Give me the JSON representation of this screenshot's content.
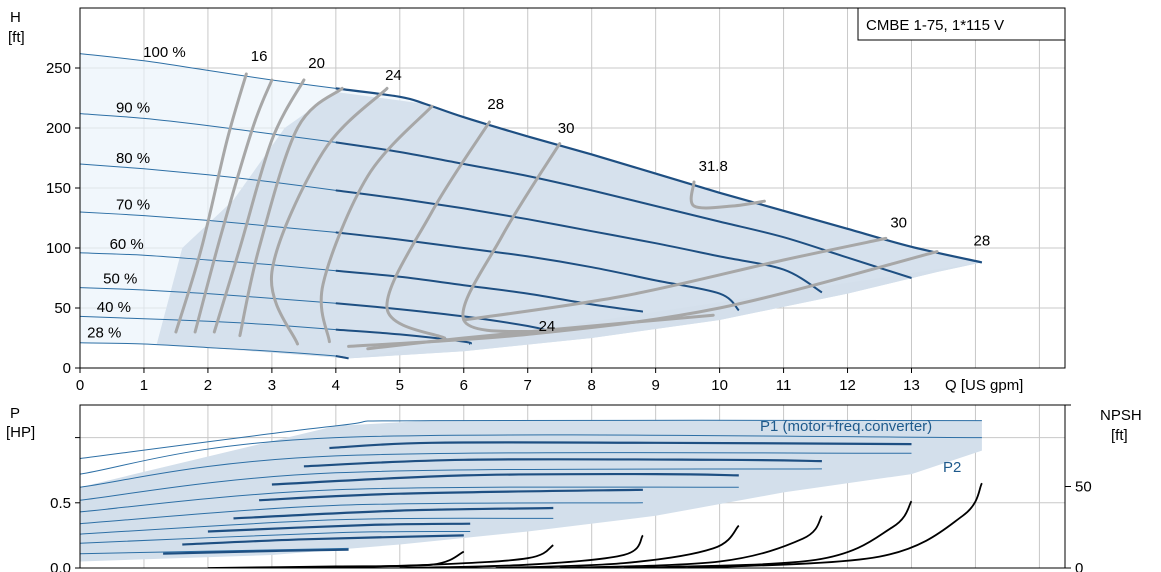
{
  "chart_data": [
    {
      "type": "line",
      "title": "CMBE 1-75, 1*115 V",
      "ylabel_symbol": "H",
      "ylabel_unit": "[ft]",
      "xlabel": "Q [US gpm]",
      "xlim": [
        0,
        15.4
      ],
      "ylim": [
        0,
        300
      ],
      "x_ticks": [
        "0",
        "1",
        "2",
        "3",
        "4",
        "5",
        "6",
        "7",
        "8",
        "9",
        "10",
        "11",
        "12",
        "13"
      ],
      "y_ticks": [
        "0",
        "50",
        "100",
        "150",
        "200",
        "250"
      ],
      "grid": true,
      "speed_curve_labels": [
        "100 %",
        "90 %",
        "80 %",
        "70 %",
        "60 %",
        "50 %",
        "40 %",
        "28 %"
      ],
      "speed_curves": [
        {
          "name": "100 %",
          "x": [
            0,
            1,
            2,
            3,
            4,
            5,
            5.4,
            6,
            7,
            8,
            9,
            10,
            11,
            12,
            13,
            14.1
          ],
          "y": [
            262,
            256,
            248,
            240,
            233,
            226,
            220,
            209,
            193,
            178,
            162,
            146,
            131,
            116,
            101,
            88
          ]
        },
        {
          "name": "90 %",
          "x": [
            0,
            1,
            2,
            3,
            4,
            5,
            6,
            7,
            8,
            9,
            10,
            11,
            12,
            13
          ],
          "y": [
            212,
            208,
            202,
            195,
            188,
            180,
            170,
            160,
            148,
            135,
            122,
            109,
            92,
            75
          ]
        },
        {
          "name": "80 %",
          "x": [
            0,
            1,
            2,
            3,
            4,
            5,
            6,
            7,
            8,
            9,
            10,
            11,
            11.6
          ],
          "y": [
            170,
            166,
            161,
            155,
            148,
            141,
            133,
            124,
            114,
            104,
            93,
            82,
            63
          ]
        },
        {
          "name": "70 %",
          "x": [
            0,
            1,
            2,
            3,
            4,
            5,
            6,
            7,
            8,
            9,
            10,
            10.3
          ],
          "y": [
            130,
            127,
            123,
            118,
            113,
            107,
            100,
            93,
            84,
            73,
            62,
            48
          ]
        },
        {
          "name": "60 %",
          "x": [
            0,
            1,
            2,
            3,
            4,
            5,
            6,
            7,
            8,
            8.8
          ],
          "y": [
            96,
            94,
            90,
            86,
            81,
            76,
            69,
            62,
            53,
            47
          ]
        },
        {
          "name": "50 %",
          "x": [
            0,
            1,
            2,
            3,
            4,
            5,
            6,
            7,
            7.4
          ],
          "y": [
            67,
            65,
            62,
            58,
            54,
            49,
            43,
            35,
            30
          ]
        },
        {
          "name": "40 %",
          "x": [
            0,
            1,
            2,
            3,
            4,
            5,
            6,
            6.1
          ],
          "y": [
            43,
            41,
            39,
            36,
            32,
            28,
            22,
            20
          ]
        },
        {
          "name": "28 %",
          "x": [
            0,
            1,
            2,
            3,
            4,
            4.2
          ],
          "y": [
            21,
            20,
            17,
            14,
            10,
            8
          ]
        }
      ],
      "envelope": {
        "x": [
          1.2,
          1.6,
          2.4,
          3.2,
          4.0,
          5.4,
          7.0,
          9.0,
          11.0,
          13.0,
          14.1,
          13.4,
          12.0,
          10.0,
          8.0,
          6.0,
          4.2
        ],
        "y": [
          20,
          100,
          140,
          200,
          230,
          220,
          193,
          162,
          131,
          101,
          88,
          80,
          62,
          40,
          25,
          14,
          8
        ]
      },
      "eta_labels": [
        {
          "text": "16",
          "x": 2.8,
          "y": 256
        },
        {
          "text": "20",
          "x": 3.7,
          "y": 250
        },
        {
          "text": "24",
          "x": 4.9,
          "y": 240
        },
        {
          "text": "28",
          "x": 6.5,
          "y": 216
        },
        {
          "text": "30",
          "x": 7.6,
          "y": 196
        },
        {
          "text": "31.8",
          "x": 9.9,
          "y": 164
        },
        {
          "text": "30",
          "x": 12.8,
          "y": 117
        },
        {
          "text": "28",
          "x": 14.1,
          "y": 102
        },
        {
          "text": "24",
          "x": 7.3,
          "y": 31
        }
      ],
      "efficiency_curves": [
        {
          "name": "16",
          "x": [
            1.5,
            1.9,
            2.3,
            2.6
          ],
          "y": [
            30,
            100,
            190,
            245
          ]
        },
        {
          "name": "16",
          "x": [
            1.8,
            2.2,
            2.7,
            3.0
          ],
          "y": [
            30,
            110,
            200,
            240
          ]
        },
        {
          "name": "20",
          "x": [
            2.1,
            2.5,
            3.0,
            3.5
          ],
          "y": [
            30,
            100,
            190,
            240
          ]
        },
        {
          "name": "20",
          "x": [
            2.5,
            2.8,
            3.4,
            4.1
          ],
          "y": [
            27,
            100,
            200,
            233
          ]
        },
        {
          "name": "24",
          "x": [
            3.4,
            3.0,
            3.8,
            4.8
          ],
          "y": [
            20,
            80,
            180,
            233
          ]
        },
        {
          "name": "24",
          "x": [
            3.9,
            3.8,
            4.5,
            5.5
          ],
          "y": [
            22,
            70,
            160,
            218
          ]
        },
        {
          "name": "28",
          "x": [
            5.7,
            4.8,
            5.5,
            6.4
          ],
          "y": [
            25,
            50,
            130,
            205
          ]
        },
        {
          "name": "30",
          "x": [
            7.2,
            6.0,
            6.6,
            7.5
          ],
          "y": [
            30,
            40,
            110,
            187
          ]
        },
        {
          "name": "28",
          "x": [
            4.2,
            7.0,
            10.0,
            13.4
          ],
          "y": [
            18,
            28,
            50,
            97
          ]
        },
        {
          "name": "30",
          "x": [
            6.0,
            8.5,
            11.0,
            12.6
          ],
          "y": [
            40,
            60,
            90,
            108
          ]
        },
        {
          "name": "24",
          "x": [
            4.5,
            6.0,
            8.0,
            9.9
          ],
          "y": [
            16,
            25,
            35,
            44
          ]
        },
        {
          "name": "31.8",
          "x": [
            9.6,
            9.6,
            10.2,
            10.7
          ],
          "y": [
            155,
            135,
            135,
            139
          ]
        }
      ]
    },
    {
      "type": "line",
      "ylabel_symbol": "P",
      "ylabel_unit": "[HP]",
      "y2label_symbol": "NPSH",
      "y2label_unit": "[ft]",
      "ylim": [
        0,
        1.25
      ],
      "y2lim": [
        0,
        100
      ],
      "y_ticks": [
        "0.0",
        "0.5"
      ],
      "y2_ticks": [
        "0",
        "50"
      ],
      "grid": true,
      "legend_labels": [
        "P1 (motor+freq.converter)",
        "P2"
      ],
      "p1_curves": [
        {
          "x": [
            0,
            4.0,
            5.5,
            14.1
          ],
          "y": [
            0.84,
            1.09,
            1.13,
            1.13
          ]
        },
        {
          "x": [
            0,
            4.0,
            14.1
          ],
          "y": [
            0.72,
            1.0,
            1.0
          ]
        },
        {
          "x": [
            0,
            4.0,
            13.0
          ],
          "y": [
            0.62,
            0.86,
            0.88
          ]
        },
        {
          "x": [
            0,
            4.0,
            11.6
          ],
          "y": [
            0.52,
            0.73,
            0.76
          ]
        },
        {
          "x": [
            0,
            4.0,
            10.3
          ],
          "y": [
            0.43,
            0.6,
            0.62
          ]
        },
        {
          "x": [
            0,
            4.0,
            8.8
          ],
          "y": [
            0.34,
            0.48,
            0.5
          ]
        },
        {
          "x": [
            0,
            4.0,
            7.4
          ],
          "y": [
            0.26,
            0.37,
            0.38
          ]
        },
        {
          "x": [
            0,
            4.0,
            6.1
          ],
          "y": [
            0.19,
            0.27,
            0.28
          ]
        },
        {
          "x": [
            0,
            4.2
          ],
          "y": [
            0.11,
            0.15
          ]
        }
      ],
      "p2_curves": [
        {
          "x": [
            3.9,
            5.5,
            9.0,
            13.0
          ],
          "y": [
            0.92,
            0.96,
            0.96,
            0.95
          ]
        },
        {
          "x": [
            3.5,
            6.0,
            10.0,
            11.6
          ],
          "y": [
            0.78,
            0.83,
            0.83,
            0.82
          ]
        },
        {
          "x": [
            3.0,
            6.0,
            9.0,
            10.3
          ],
          "y": [
            0.64,
            0.71,
            0.72,
            0.71
          ]
        },
        {
          "x": [
            2.8,
            5.0,
            8.8
          ],
          "y": [
            0.52,
            0.57,
            0.6
          ]
        },
        {
          "x": [
            2.4,
            5.0,
            7.4
          ],
          "y": [
            0.38,
            0.44,
            0.46
          ]
        },
        {
          "x": [
            2.0,
            4.5,
            6.1
          ],
          "y": [
            0.28,
            0.33,
            0.34
          ]
        },
        {
          "x": [
            1.6,
            3.5,
            6.0
          ],
          "y": [
            0.18,
            0.22,
            0.25
          ]
        },
        {
          "x": [
            1.3,
            3.0,
            4.2
          ],
          "y": [
            0.11,
            0.13,
            0.14
          ]
        }
      ],
      "npsh_curves": [
        {
          "x": [
            2.0,
            4.0,
            5.5,
            6.0
          ],
          "y": [
            0,
            1,
            2,
            10
          ]
        },
        {
          "x": [
            3.5,
            5.5,
            7.0,
            7.4
          ],
          "y": [
            0,
            2,
            6,
            14
          ]
        },
        {
          "x": [
            5.0,
            7.0,
            8.5,
            8.8
          ],
          "y": [
            0,
            2,
            8,
            20
          ]
        },
        {
          "x": [
            6.5,
            8.5,
            9.9,
            10.3
          ],
          "y": [
            0,
            3,
            12,
            26
          ]
        },
        {
          "x": [
            7.5,
            10.0,
            11.3,
            11.6
          ],
          "y": [
            0,
            4,
            18,
            32
          ]
        },
        {
          "x": [
            8.5,
            11.5,
            12.7,
            13.0
          ],
          "y": [
            0,
            5,
            25,
            41
          ]
        },
        {
          "x": [
            9.5,
            12.5,
            13.8,
            14.1
          ],
          "y": [
            0,
            7,
            32,
            52
          ]
        }
      ],
      "envelope": {
        "x": [
          0,
          4.0,
          5.5,
          14.1,
          14.1,
          13.0,
          11.0,
          9.0,
          7.0,
          5.0,
          3.0,
          0
        ],
        "y": [
          0.62,
          1.09,
          1.13,
          1.13,
          0.9,
          0.72,
          0.58,
          0.4,
          0.28,
          0.18,
          0.1,
          0.05
        ]
      }
    }
  ]
}
